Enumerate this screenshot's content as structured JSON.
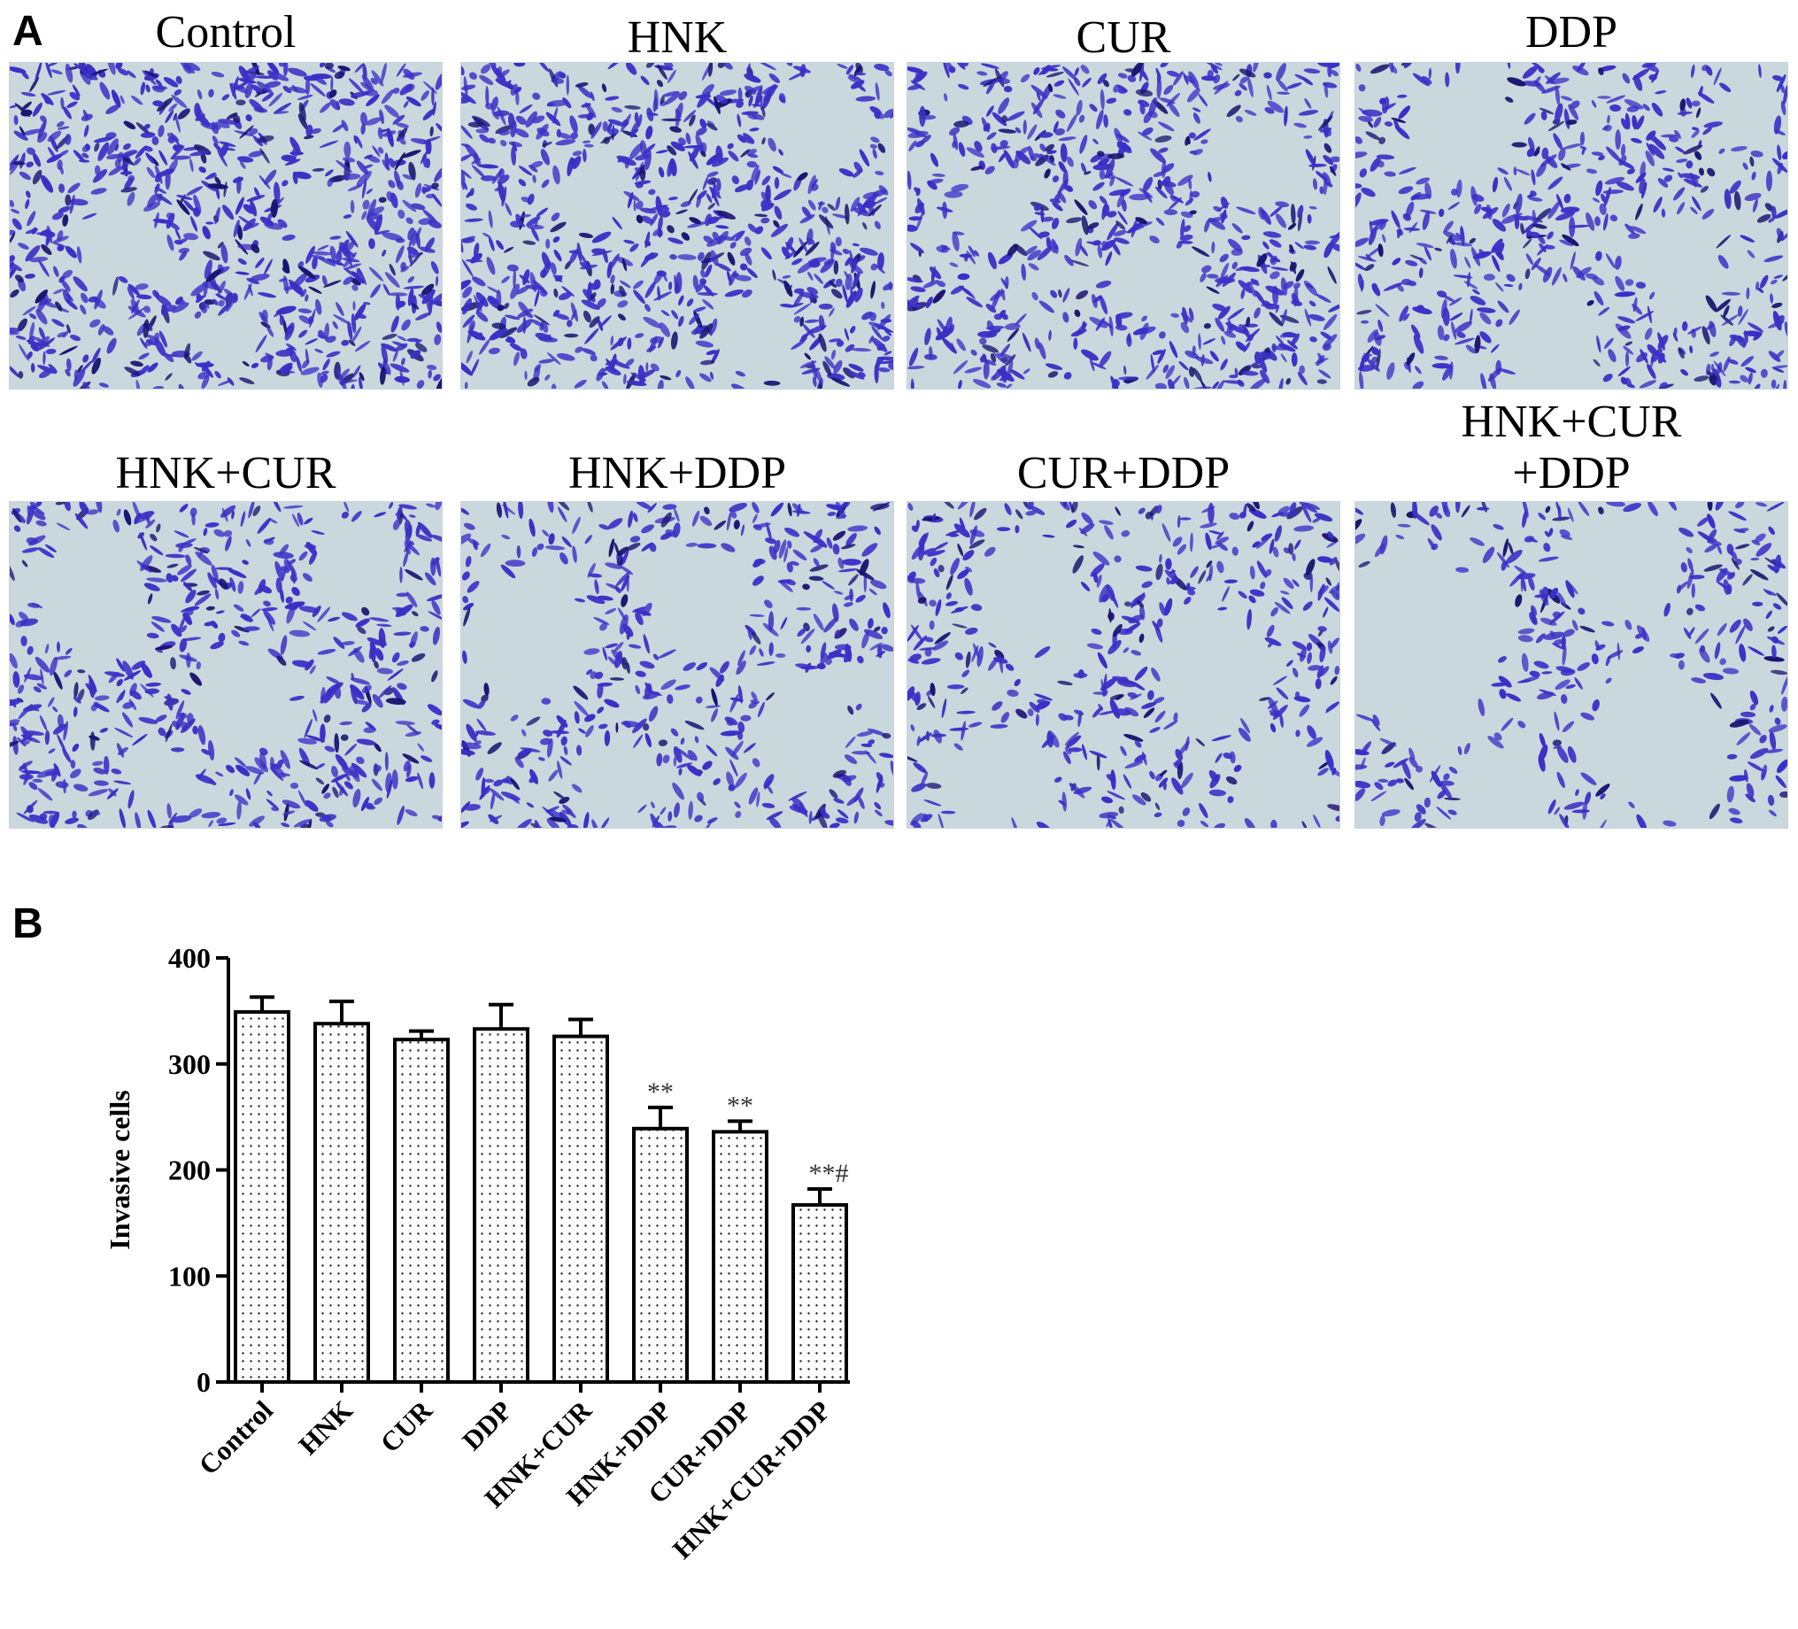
{
  "figure": {
    "panel_a_label": "A",
    "panel_b_label": "B",
    "micrograph_titles": [
      "Control",
      "HNK",
      "CUR",
      "DDP",
      "HNK+CUR",
      "HNK+DDP",
      "CUR+DDP",
      "HNK+CUR\n+DDP"
    ],
    "colors": {
      "stain": "#3a2fc6",
      "stain_dark": "#1a1470",
      "membrane": "#c8d8dd",
      "bar_fill": "#ffffff",
      "bar_stroke": "#000000"
    }
  },
  "chart_data": {
    "type": "bar",
    "ylabel": "Invasive cells",
    "ylim": [
      0,
      400
    ],
    "yticks": [
      0,
      100,
      200,
      300,
      400
    ],
    "categories": [
      "Control",
      "HNK",
      "CUR",
      "DDP",
      "HNK+CUR",
      "HNK+DDP",
      "CUR+DDP",
      "HNK+CUR+DDP"
    ],
    "values": [
      349,
      338,
      323,
      333,
      326,
      239,
      236,
      167
    ],
    "errors": [
      14,
      21,
      8,
      23,
      16,
      20,
      10,
      15
    ],
    "annotations": [
      "",
      "",
      "",
      "",
      "",
      "**",
      "**",
      "**#"
    ],
    "grid": false
  }
}
